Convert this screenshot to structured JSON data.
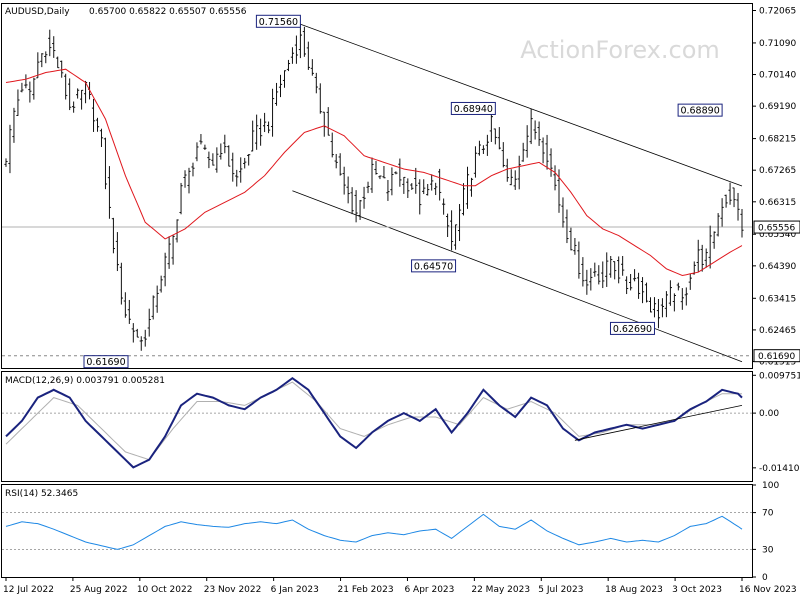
{
  "header": {
    "symbol": "AUDUSD,Daily",
    "ohlc": "0.65700 0.65822 0.65507 0.65556"
  },
  "watermark": "ActionForex.com",
  "colors": {
    "price_bar": "#111111",
    "ma_line": "#e0181e",
    "macd_line": "#1a237e",
    "signal_line": "#b0b0b0",
    "axis": "#000000",
    "grid_dashed": "#888888",
    "label_border": "#1a237e",
    "current_price_line": "#b0b0b0"
  },
  "chart_data": [
    {
      "type": "line",
      "title": "AUDUSD,Daily",
      "description": "price bars with moving average and descending channel",
      "x_labels": [
        "12 Jul 2022",
        "25 Aug 2022",
        "10 Oct 2022",
        "23 Nov 2022",
        "6 Jan 2023",
        "21 Feb 2023",
        "6 Apr 2023",
        "22 May 2023",
        "5 Jul 2023",
        "18 Aug 2023",
        "3 Oct 2023",
        "16 Nov 2023"
      ],
      "y_ticks": [
        "0.72065",
        "0.71090",
        "0.70140",
        "0.69190",
        "0.68215",
        "0.67265",
        "0.66315",
        "0.65340",
        "0.64390",
        "0.63415",
        "0.62465",
        "0.61515"
      ],
      "ylim": [
        0.6132,
        0.7226
      ],
      "current_price": "0.65556",
      "reference_level": "0.61690",
      "annotations": [
        {
          "label": "0.71560",
          "value": 0.7156,
          "bar": 74
        },
        {
          "label": "0.68940",
          "value": 0.6894,
          "bar": 123
        },
        {
          "label": "0.68890",
          "value": 0.6889,
          "bar": 180
        },
        {
          "label": "0.64570",
          "value": 0.6457,
          "bar": 113
        },
        {
          "label": "0.62690",
          "value": 0.6269,
          "bar": 163
        },
        {
          "label": "0.61690",
          "value": 0.6169,
          "bar": 33
        }
      ],
      "price_path": [
        [
          0,
          0.677
        ],
        [
          2,
          0.69
        ],
        [
          4,
          0.698
        ],
        [
          6,
          0.695
        ],
        [
          8,
          0.705
        ],
        [
          10,
          0.71
        ],
        [
          12,
          0.708
        ],
        [
          14,
          0.7
        ],
        [
          16,
          0.692
        ],
        [
          18,
          0.694
        ],
        [
          20,
          0.697
        ],
        [
          22,
          0.69
        ],
        [
          24,
          0.68
        ],
        [
          26,
          0.66
        ],
        [
          28,
          0.642
        ],
        [
          30,
          0.63
        ],
        [
          32,
          0.625
        ],
        [
          34,
          0.621
        ],
        [
          36,
          0.627
        ],
        [
          38,
          0.637
        ],
        [
          40,
          0.645
        ],
        [
          42,
          0.652
        ],
        [
          44,
          0.668
        ],
        [
          46,
          0.671
        ],
        [
          48,
          0.68
        ],
        [
          50,
          0.677
        ],
        [
          52,
          0.675
        ],
        [
          54,
          0.68
        ],
        [
          56,
          0.675
        ],
        [
          58,
          0.67
        ],
        [
          60,
          0.675
        ],
        [
          62,
          0.682
        ],
        [
          64,
          0.685
        ],
        [
          66,
          0.687
        ],
        [
          68,
          0.696
        ],
        [
          70,
          0.702
        ],
        [
          72,
          0.708
        ],
        [
          74,
          0.712
        ],
        [
          76,
          0.705
        ],
        [
          78,
          0.695
        ],
        [
          80,
          0.688
        ],
        [
          82,
          0.678
        ],
        [
          84,
          0.67
        ],
        [
          86,
          0.665
        ],
        [
          88,
          0.66
        ],
        [
          90,
          0.666
        ],
        [
          92,
          0.672
        ],
        [
          94,
          0.67
        ],
        [
          96,
          0.667
        ],
        [
          98,
          0.672
        ],
        [
          100,
          0.67
        ],
        [
          102,
          0.668
        ],
        [
          104,
          0.664
        ],
        [
          106,
          0.666
        ],
        [
          108,
          0.67
        ],
        [
          110,
          0.66
        ],
        [
          112,
          0.651
        ],
        [
          114,
          0.66
        ],
        [
          116,
          0.669
        ],
        [
          118,
          0.676
        ],
        [
          120,
          0.68
        ],
        [
          122,
          0.686
        ],
        [
          124,
          0.678
        ],
        [
          126,
          0.669
        ],
        [
          128,
          0.671
        ],
        [
          130,
          0.681
        ],
        [
          132,
          0.686
        ],
        [
          134,
          0.683
        ],
        [
          136,
          0.678
        ],
        [
          138,
          0.668
        ],
        [
          140,
          0.658
        ],
        [
          142,
          0.651
        ],
        [
          144,
          0.644
        ],
        [
          146,
          0.638
        ],
        [
          148,
          0.643
        ],
        [
          150,
          0.64
        ],
        [
          152,
          0.646
        ],
        [
          154,
          0.642
        ],
        [
          156,
          0.638
        ],
        [
          158,
          0.64
        ],
        [
          160,
          0.636
        ],
        [
          162,
          0.632
        ],
        [
          164,
          0.63
        ],
        [
          166,
          0.633
        ],
        [
          168,
          0.637
        ],
        [
          170,
          0.633
        ],
        [
          172,
          0.642
        ],
        [
          174,
          0.647
        ],
        [
          176,
          0.646
        ],
        [
          178,
          0.655
        ],
        [
          180,
          0.663
        ],
        [
          182,
          0.665
        ],
        [
          184,
          0.66
        ],
        [
          185,
          0.656
        ]
      ],
      "ma_path": [
        [
          0,
          0.699
        ],
        [
          5,
          0.7
        ],
        [
          10,
          0.702
        ],
        [
          15,
          0.703
        ],
        [
          20,
          0.699
        ],
        [
          25,
          0.688
        ],
        [
          30,
          0.671
        ],
        [
          35,
          0.657
        ],
        [
          40,
          0.652
        ],
        [
          45,
          0.655
        ],
        [
          50,
          0.66
        ],
        [
          55,
          0.663
        ],
        [
          60,
          0.666
        ],
        [
          65,
          0.671
        ],
        [
          70,
          0.678
        ],
        [
          75,
          0.684
        ],
        [
          80,
          0.686
        ],
        [
          85,
          0.683
        ],
        [
          90,
          0.677
        ],
        [
          95,
          0.675
        ],
        [
          100,
          0.673
        ],
        [
          105,
          0.672
        ],
        [
          110,
          0.67
        ],
        [
          115,
          0.668
        ],
        [
          118,
          0.668
        ],
        [
          122,
          0.671
        ],
        [
          126,
          0.673
        ],
        [
          130,
          0.674
        ],
        [
          134,
          0.675
        ],
        [
          138,
          0.672
        ],
        [
          142,
          0.666
        ],
        [
          146,
          0.659
        ],
        [
          150,
          0.655
        ],
        [
          154,
          0.653
        ],
        [
          158,
          0.65
        ],
        [
          162,
          0.647
        ],
        [
          166,
          0.643
        ],
        [
          170,
          0.641
        ],
        [
          174,
          0.642
        ],
        [
          178,
          0.645
        ],
        [
          182,
          0.648
        ],
        [
          185,
          0.65
        ]
      ],
      "channel_upper": [
        [
          72,
          0.7174
        ],
        [
          185,
          0.6679
        ]
      ],
      "channel_lower": [
        [
          72,
          0.6665
        ],
        [
          185,
          0.6151
        ]
      ]
    },
    {
      "type": "line",
      "title": "MACD(12,26,9) 0.003791 0.005281",
      "y_ticks": [
        "0.009751",
        "0.00",
        "-0.014107"
      ],
      "ylim": [
        -0.0175,
        0.0106
      ],
      "series": [
        {
          "name": "MACD",
          "points": [
            [
              0,
              -0.006
            ],
            [
              4,
              -0.002
            ],
            [
              8,
              0.004
            ],
            [
              12,
              0.006
            ],
            [
              16,
              0.004
            ],
            [
              20,
              -0.002
            ],
            [
              24,
              -0.006
            ],
            [
              28,
              -0.01
            ],
            [
              32,
              -0.014
            ],
            [
              36,
              -0.012
            ],
            [
              40,
              -0.006
            ],
            [
              44,
              0.002
            ],
            [
              48,
              0.005
            ],
            [
              52,
              0.004
            ],
            [
              56,
              0.002
            ],
            [
              60,
              0.001
            ],
            [
              64,
              0.004
            ],
            [
              68,
              0.006
            ],
            [
              72,
              0.009
            ],
            [
              76,
              0.006
            ],
            [
              80,
              0.0
            ],
            [
              84,
              -0.006
            ],
            [
              88,
              -0.009
            ],
            [
              92,
              -0.005
            ],
            [
              96,
              -0.002
            ],
            [
              100,
              0.0
            ],
            [
              104,
              -0.002
            ],
            [
              108,
              0.001
            ],
            [
              112,
              -0.005
            ],
            [
              116,
              0.0
            ],
            [
              120,
              0.006
            ],
            [
              124,
              0.002
            ],
            [
              128,
              -0.001
            ],
            [
              132,
              0.004
            ],
            [
              136,
              0.002
            ],
            [
              140,
              -0.004
            ],
            [
              144,
              -0.007
            ],
            [
              148,
              -0.005
            ],
            [
              152,
              -0.004
            ],
            [
              156,
              -0.003
            ],
            [
              160,
              -0.004
            ],
            [
              164,
              -0.003
            ],
            [
              168,
              -0.002
            ],
            [
              172,
              0.001
            ],
            [
              176,
              0.003
            ],
            [
              180,
              0.006
            ],
            [
              184,
              0.005
            ],
            [
              185,
              0.004
            ]
          ]
        },
        {
          "name": "Signal",
          "points": [
            [
              0,
              -0.008
            ],
            [
              6,
              -0.002
            ],
            [
              12,
              0.004
            ],
            [
              18,
              0.002
            ],
            [
              24,
              -0.004
            ],
            [
              30,
              -0.01
            ],
            [
              36,
              -0.012
            ],
            [
              42,
              -0.004
            ],
            [
              48,
              0.003
            ],
            [
              54,
              0.003
            ],
            [
              60,
              0.002
            ],
            [
              66,
              0.005
            ],
            [
              72,
              0.008
            ],
            [
              78,
              0.003
            ],
            [
              84,
              -0.004
            ],
            [
              90,
              -0.006
            ],
            [
              96,
              -0.003
            ],
            [
              102,
              -0.001
            ],
            [
              108,
              -0.001
            ],
            [
              114,
              -0.003
            ],
            [
              120,
              0.004
            ],
            [
              126,
              0.001
            ],
            [
              132,
              0.003
            ],
            [
              138,
              0.0
            ],
            [
              144,
              -0.006
            ],
            [
              150,
              -0.005
            ],
            [
              156,
              -0.003
            ],
            [
              162,
              -0.003
            ],
            [
              168,
              -0.002
            ],
            [
              174,
              0.002
            ],
            [
              180,
              0.005
            ],
            [
              185,
              0.005
            ]
          ]
        }
      ],
      "trendline": [
        [
          143,
          -0.007
        ],
        [
          185,
          0.002
        ]
      ]
    },
    {
      "type": "line",
      "title": "RSI(14) 52.3465",
      "y_ticks": [
        "100",
        "70",
        "30",
        "0"
      ],
      "ylim": [
        0,
        100
      ],
      "series": [
        {
          "name": "RSI",
          "points": [
            [
              0,
              55
            ],
            [
              4,
              60
            ],
            [
              8,
              58
            ],
            [
              12,
              52
            ],
            [
              16,
              45
            ],
            [
              20,
              38
            ],
            [
              24,
              34
            ],
            [
              28,
              30
            ],
            [
              32,
              35
            ],
            [
              36,
              45
            ],
            [
              40,
              55
            ],
            [
              44,
              60
            ],
            [
              48,
              57
            ],
            [
              52,
              55
            ],
            [
              56,
              54
            ],
            [
              60,
              58
            ],
            [
              64,
              60
            ],
            [
              68,
              58
            ],
            [
              72,
              62
            ],
            [
              76,
              52
            ],
            [
              80,
              45
            ],
            [
              84,
              40
            ],
            [
              88,
              38
            ],
            [
              92,
              45
            ],
            [
              96,
              48
            ],
            [
              100,
              46
            ],
            [
              104,
              50
            ],
            [
              108,
              52
            ],
            [
              112,
              42
            ],
            [
              116,
              55
            ],
            [
              120,
              68
            ],
            [
              124,
              55
            ],
            [
              128,
              52
            ],
            [
              132,
              62
            ],
            [
              136,
              50
            ],
            [
              140,
              42
            ],
            [
              144,
              35
            ],
            [
              148,
              38
            ],
            [
              152,
              42
            ],
            [
              156,
              38
            ],
            [
              160,
              40
            ],
            [
              164,
              38
            ],
            [
              168,
              45
            ],
            [
              172,
              55
            ],
            [
              176,
              58
            ],
            [
              180,
              66
            ],
            [
              184,
              55
            ],
            [
              185,
              52
            ]
          ]
        }
      ]
    }
  ]
}
